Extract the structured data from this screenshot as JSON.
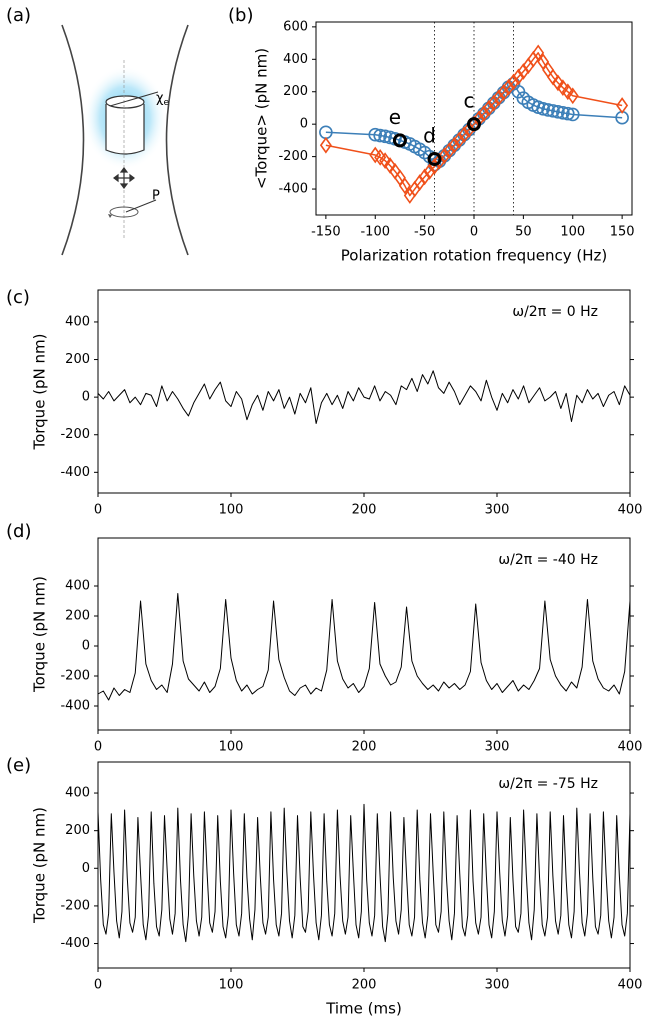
{
  "panel_a": {
    "label": "(a)",
    "chi_symbol": "χ",
    "chi_subscript": "e",
    "pol_label": "P"
  },
  "chart_data": [
    {
      "type": "line",
      "panel_label": "(b)",
      "xlabel": "Polarization rotation frequency (Hz)",
      "ylabel": "<Torque> (pN nm)",
      "x": [
        -150,
        -100,
        -95,
        -90,
        -85,
        -80,
        -75,
        -70,
        -65,
        -60,
        -55,
        -50,
        -45,
        -40,
        -35,
        -30,
        -25,
        -20,
        -15,
        -10,
        -5,
        0,
        5,
        10,
        15,
        20,
        25,
        30,
        35,
        40,
        45,
        50,
        55,
        60,
        65,
        70,
        75,
        80,
        85,
        90,
        95,
        100,
        150
      ],
      "series": [
        {
          "color": "#3c7fb8",
          "marker": "circle",
          "values": [
            -50,
            -65,
            -70,
            -75,
            -82,
            -90,
            -100,
            -110,
            -122,
            -138,
            -155,
            -175,
            -200,
            -250,
            -228,
            -195,
            -163,
            -130,
            -98,
            -65,
            -33,
            0,
            33,
            65,
            98,
            130,
            163,
            195,
            228,
            250,
            200,
            160,
            135,
            118,
            105,
            95,
            88,
            82,
            76,
            70,
            65,
            60,
            40
          ]
        },
        {
          "color": "#f0501a",
          "marker": "diamond",
          "values": [
            -130,
            -190,
            -205,
            -225,
            -255,
            -290,
            -330,
            -380,
            -440,
            -400,
            -360,
            -325,
            -292,
            -260,
            -228,
            -195,
            -163,
            -130,
            -98,
            -65,
            -33,
            0,
            33,
            65,
            98,
            130,
            163,
            195,
            228,
            260,
            292,
            325,
            360,
            400,
            440,
            385,
            335,
            290,
            255,
            225,
            200,
            175,
            115
          ]
        }
      ],
      "annotations": [
        {
          "text": "c",
          "x": 0,
          "y": 0
        },
        {
          "text": "d",
          "x": -40,
          "y": -215
        },
        {
          "text": "e",
          "x": -75,
          "y": -100
        }
      ],
      "vlines": [
        -40,
        0,
        40
      ],
      "xlim": [
        -160,
        160
      ],
      "ylim": [
        -560,
        630
      ],
      "xticks": [
        -150,
        -100,
        -50,
        0,
        50,
        100,
        150
      ],
      "yticks": [
        -400,
        -200,
        0,
        200,
        400,
        600
      ]
    },
    {
      "type": "line",
      "panel_label": "(c)",
      "ylabel": "Torque (pN nm)",
      "annotation": "ω/2π = 0 Hz",
      "color": "#000000",
      "x": [
        0,
        4,
        8,
        12,
        16,
        20,
        24,
        28,
        32,
        36,
        40,
        44,
        48,
        52,
        56,
        60,
        64,
        68,
        72,
        76,
        80,
        84,
        88,
        92,
        96,
        100,
        104,
        108,
        112,
        116,
        120,
        124,
        128,
        132,
        136,
        140,
        144,
        148,
        152,
        156,
        160,
        164,
        168,
        172,
        176,
        180,
        184,
        188,
        192,
        196,
        200,
        204,
        208,
        212,
        216,
        220,
        224,
        228,
        232,
        236,
        240,
        244,
        248,
        252,
        256,
        260,
        264,
        268,
        272,
        276,
        280,
        284,
        288,
        292,
        296,
        300,
        304,
        308,
        312,
        316,
        320,
        324,
        328,
        332,
        336,
        340,
        344,
        348,
        352,
        356,
        360,
        364,
        368,
        372,
        376,
        380,
        384,
        388,
        392,
        396,
        400
      ],
      "values": [
        20,
        -10,
        30,
        -20,
        10,
        40,
        -30,
        0,
        -40,
        20,
        10,
        -50,
        60,
        -20,
        30,
        -10,
        -60,
        -100,
        -30,
        20,
        70,
        -10,
        40,
        80,
        -20,
        -50,
        30,
        -10,
        -120,
        -40,
        10,
        -70,
        30,
        -20,
        40,
        -60,
        0,
        -90,
        20,
        -30,
        50,
        -140,
        -30,
        20,
        -40,
        10,
        -60,
        30,
        -20,
        50,
        0,
        -10,
        60,
        -20,
        30,
        10,
        -40,
        60,
        40,
        100,
        30,
        120,
        70,
        140,
        50,
        20,
        80,
        30,
        -40,
        10,
        60,
        30,
        -20,
        90,
        0,
        -70,
        20,
        -30,
        40,
        -10,
        60,
        -30,
        10,
        50,
        -20,
        0,
        30,
        -60,
        20,
        -130,
        10,
        -30,
        40,
        -10,
        20,
        -50,
        10,
        30,
        -40,
        60,
        10
      ],
      "xlim": [
        0,
        400
      ],
      "ylim": [
        -510,
        570
      ],
      "xticks": [
        0,
        100,
        200,
        300,
        400
      ],
      "yticks": [
        -400,
        -200,
        0,
        200,
        400
      ]
    },
    {
      "type": "line",
      "panel_label": "(d)",
      "ylabel": "Torque (pN nm)",
      "annotation": "ω/2π = -40 Hz",
      "color": "#000000",
      "x": [
        0,
        4,
        8,
        12,
        16,
        20,
        24,
        28,
        32,
        36,
        40,
        44,
        48,
        52,
        56,
        60,
        64,
        68,
        72,
        76,
        80,
        84,
        88,
        92,
        96,
        100,
        104,
        108,
        112,
        116,
        120,
        124,
        128,
        132,
        136,
        140,
        144,
        148,
        152,
        156,
        160,
        164,
        168,
        172,
        176,
        180,
        184,
        188,
        192,
        196,
        200,
        204,
        208,
        212,
        216,
        220,
        224,
        228,
        232,
        236,
        240,
        244,
        248,
        252,
        256,
        260,
        264,
        268,
        272,
        276,
        280,
        284,
        288,
        292,
        296,
        300,
        304,
        308,
        312,
        316,
        320,
        324,
        328,
        332,
        336,
        340,
        344,
        348,
        352,
        356,
        360,
        364,
        368,
        372,
        376,
        380,
        384,
        388,
        392,
        396,
        400
      ],
      "values": [
        -320,
        -300,
        -360,
        -280,
        -330,
        -290,
        -310,
        -180,
        300,
        -120,
        -230,
        -290,
        -260,
        -310,
        -120,
        350,
        -100,
        -220,
        -260,
        -300,
        -240,
        -310,
        -270,
        -150,
        310,
        -80,
        -230,
        -300,
        -260,
        -320,
        -290,
        -270,
        -160,
        300,
        -90,
        -210,
        -300,
        -330,
        -280,
        -260,
        -320,
        -280,
        -300,
        -160,
        310,
        -100,
        -220,
        -280,
        -250,
        -310,
        -270,
        -150,
        290,
        -120,
        -200,
        -260,
        -240,
        -140,
        260,
        -100,
        -200,
        -250,
        -290,
        -260,
        -300,
        -240,
        -280,
        -250,
        -290,
        -260,
        -170,
        280,
        -110,
        -230,
        -290,
        -250,
        -310,
        -270,
        -230,
        -300,
        -260,
        -290,
        -230,
        -150,
        300,
        -90,
        -200,
        -260,
        -300,
        -240,
        -280,
        -140,
        310,
        -100,
        -220,
        -280,
        -300,
        -260,
        -320,
        -170,
        300
      ],
      "xlim": [
        0,
        400
      ],
      "ylim": [
        -560,
        720
      ],
      "xticks": [
        0,
        100,
        200,
        300,
        400
      ],
      "yticks": [
        -400,
        -200,
        0,
        200,
        400
      ]
    },
    {
      "type": "line",
      "panel_label": "(e)",
      "xlabel": "Time (ms)",
      "ylabel": "Torque (pN nm)",
      "annotation": "ω/2π = -75 Hz",
      "color": "#000000",
      "x": [
        0,
        2,
        4,
        6,
        8,
        10,
        12,
        14,
        16,
        18,
        20,
        22,
        24,
        26,
        28,
        30,
        32,
        34,
        36,
        38,
        40,
        42,
        44,
        46,
        48,
        50,
        52,
        54,
        56,
        58,
        60,
        62,
        64,
        66,
        68,
        70,
        72,
        74,
        76,
        78,
        80,
        82,
        84,
        86,
        88,
        90,
        92,
        94,
        96,
        98,
        100,
        102,
        104,
        106,
        108,
        110,
        112,
        114,
        116,
        118,
        120,
        122,
        124,
        126,
        128,
        130,
        132,
        134,
        136,
        138,
        140,
        142,
        144,
        146,
        148,
        150,
        152,
        154,
        156,
        158,
        160,
        162,
        164,
        166,
        168,
        170,
        172,
        174,
        176,
        178,
        180,
        182,
        184,
        186,
        188,
        190,
        192,
        194,
        196,
        198,
        200,
        202,
        204,
        206,
        208,
        210,
        212,
        214,
        216,
        218,
        220,
        222,
        224,
        226,
        228,
        230,
        232,
        234,
        236,
        238,
        240,
        242,
        244,
        246,
        248,
        250,
        252,
        254,
        256,
        258,
        260,
        262,
        264,
        266,
        268,
        270,
        272,
        274,
        276,
        278,
        280,
        282,
        284,
        286,
        288,
        290,
        292,
        294,
        296,
        298,
        300,
        302,
        304,
        306,
        308,
        310,
        312,
        314,
        316,
        318,
        320,
        322,
        324,
        326,
        328,
        330,
        332,
        334,
        336,
        338,
        340,
        342,
        344,
        346,
        348,
        350,
        352,
        354,
        356,
        358,
        360,
        362,
        364,
        366,
        368,
        370,
        372,
        374,
        376,
        378,
        380,
        382,
        384,
        386,
        388,
        390,
        392,
        394,
        396,
        398,
        400
      ],
      "values": [
        300,
        -60,
        -300,
        -350,
        -240,
        290,
        -20,
        -280,
        -370,
        -230,
        310,
        -50,
        -290,
        -340,
        -260,
        270,
        -30,
        -300,
        -380,
        -250,
        300,
        -80,
        -310,
        -360,
        -220,
        280,
        -10,
        -270,
        -350,
        -240,
        320,
        -60,
        -300,
        -390,
        -250,
        290,
        -40,
        -280,
        -360,
        -260,
        300,
        -20,
        -290,
        -340,
        -230,
        280,
        -70,
        -310,
        -370,
        -250,
        310,
        -30,
        -300,
        -360,
        -240,
        290,
        -50,
        -270,
        -380,
        -220,
        270,
        -40,
        -290,
        -350,
        -260,
        300,
        -60,
        -300,
        -360,
        -240,
        320,
        -20,
        -280,
        -370,
        -250,
        280,
        -50,
        -310,
        -340,
        -230,
        300,
        -30,
        -290,
        -380,
        -250,
        290,
        -70,
        -300,
        -360,
        -240,
        310,
        -40,
        -280,
        -350,
        -260,
        280,
        -20,
        -300,
        -370,
        -230,
        340,
        -60,
        -290,
        -360,
        -250,
        290,
        -30,
        -310,
        -390,
        -240,
        300,
        -50,
        -280,
        -350,
        -220,
        270,
        -40,
        -300,
        -360,
        -260,
        310,
        -60,
        -290,
        -370,
        -250,
        290,
        -20,
        -300,
        -340,
        -230,
        300,
        -50,
        -280,
        -380,
        -240,
        280,
        -30,
        -310,
        -360,
        -250,
        310,
        -70,
        -290,
        -350,
        -260,
        290,
        -40,
        -300,
        -370,
        -230,
        300,
        -20,
        -280,
        -360,
        -250,
        270,
        -60,
        -310,
        -340,
        -240,
        310,
        -30,
        -290,
        -380,
        -220,
        290,
        -50,
        -300,
        -360,
        -260,
        300,
        -40,
        -280,
        -350,
        -250,
        280,
        -60,
        -300,
        -370,
        -230,
        320,
        -20,
        -290,
        -360,
        -240,
        290,
        -50,
        -310,
        -350,
        -250,
        300,
        -30,
        -280,
        -370,
        -260,
        280,
        -40,
        -300,
        -360,
        -240,
        290
      ],
      "xlim": [
        0,
        400
      ],
      "ylim": [
        -530,
        565
      ],
      "xticks": [
        0,
        100,
        200,
        300,
        400
      ],
      "yticks": [
        -400,
        -200,
        0,
        200,
        400
      ]
    }
  ]
}
